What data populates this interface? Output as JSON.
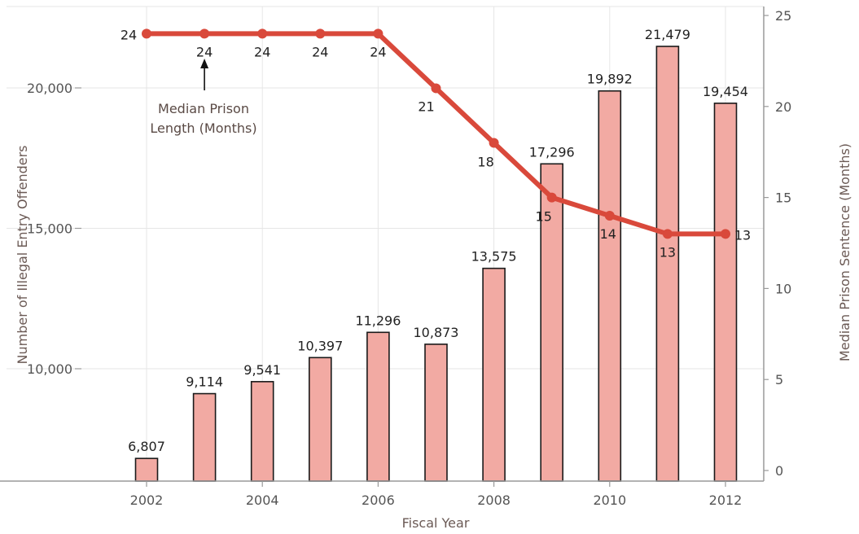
{
  "chart_data": {
    "type": "bar+line",
    "x": [
      2002,
      2003,
      2004,
      2005,
      2006,
      2007,
      2008,
      2009,
      2010,
      2011,
      2012
    ],
    "bars": {
      "values": [
        6807,
        9114,
        9541,
        10397,
        11296,
        10873,
        13575,
        17296,
        19892,
        21479,
        19454
      ],
      "labels": [
        "6,807",
        "9,114",
        "9,541",
        "10,397",
        "11,296",
        "10,873",
        "13,575",
        "17,296",
        "19,892",
        "21,479",
        "19,454"
      ],
      "axis": "left"
    },
    "line": {
      "values": [
        24,
        24,
        24,
        24,
        24,
        21,
        18,
        15,
        14,
        13,
        13
      ],
      "labels": [
        "24",
        "24",
        "24",
        "24",
        "24",
        "21",
        "18",
        "15",
        "14",
        "13",
        "13"
      ],
      "axis": "right"
    },
    "xlabel": "Fiscal Year",
    "ylabel_left": "Number of Illegal Entry Offenders",
    "ylabel_right": "Median Prison Sentence (Months)",
    "xticks": [
      "2002",
      "2004",
      "2006",
      "2008",
      "2010",
      "2012"
    ],
    "yticks_left": [
      "10,000",
      "15,000",
      "20,000"
    ],
    "yticks_right": [
      "0",
      "5",
      "10",
      "15",
      "20",
      "25"
    ],
    "ylim_right": [
      0,
      25
    ],
    "annotation": {
      "line1": "Median Prison",
      "line2": "Length (Months)",
      "year": 2003
    },
    "grid": true,
    "colors": {
      "bar_fill": "#f2aaa3",
      "bar_stroke": "#1a1a1a",
      "line": "#d9493b",
      "grid": "#e6e6e6",
      "axis": "#9a9a9a"
    }
  }
}
